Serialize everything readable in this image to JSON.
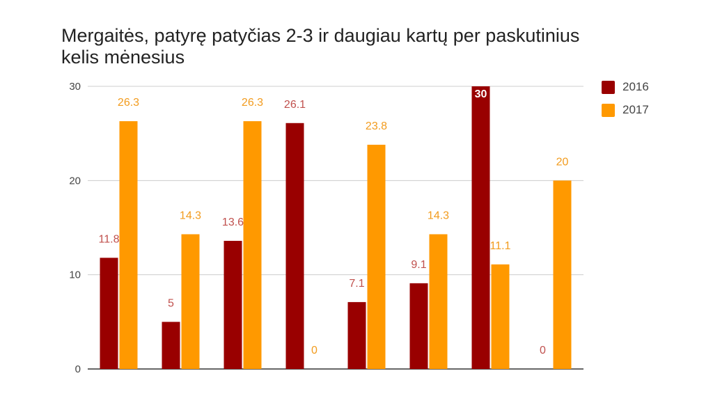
{
  "title": {
    "line1": "Mergaitės, patyrę patyčias 2-3 ir daugiau kartų per paskutinius",
    "line2": "kelis mėnesius"
  },
  "colors": {
    "s2016": "#990000",
    "s2017": "#ff9900",
    "grid": "#cccccc",
    "axis": "#333333"
  },
  "chart_data": {
    "type": "bar",
    "title": "Mergaitės, patyrę patyčias 2-3 ir daugiau kartų per paskutinius kelis mėnesius",
    "categories": [
      "",
      "",
      "",
      "",
      "",
      "",
      "",
      ""
    ],
    "series": [
      {
        "name": "2016",
        "values": [
          11.8,
          5,
          13.6,
          26.1,
          7.1,
          9.1,
          30,
          0
        ]
      },
      {
        "name": "2017",
        "values": [
          26.3,
          14.3,
          26.3,
          0,
          23.8,
          14.3,
          11.1,
          20
        ]
      }
    ],
    "ylim": [
      0,
      30
    ],
    "yticks": [
      "0",
      "10",
      "20",
      "30"
    ],
    "xlabel": "",
    "ylabel": "",
    "grid": true,
    "legend": "right"
  }
}
